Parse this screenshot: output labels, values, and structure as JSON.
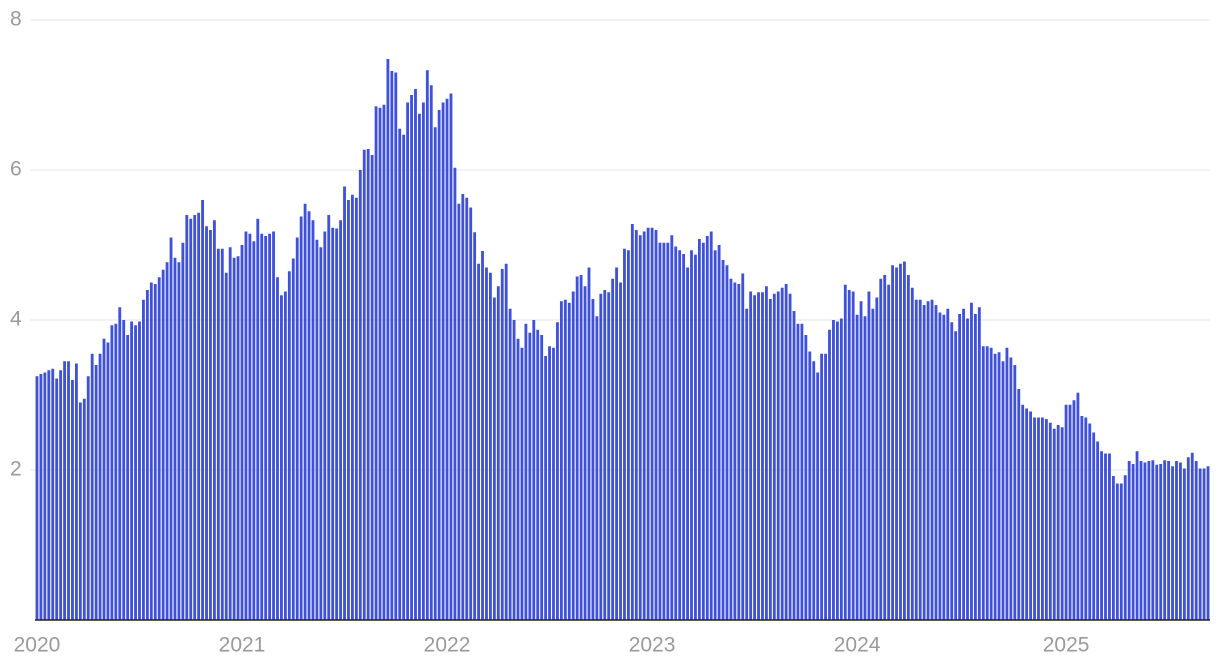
{
  "chart_data": {
    "type": "bar",
    "categories": [
      "2020",
      null,
      null,
      null,
      null,
      null,
      null,
      null,
      null,
      null,
      null,
      null,
      null,
      null,
      null,
      null,
      null,
      null,
      null,
      null,
      null,
      null,
      null,
      null,
      null,
      null,
      null,
      null,
      null,
      null,
      null,
      null,
      null,
      null,
      null,
      null,
      null,
      null,
      null,
      null,
      null,
      null,
      null,
      null,
      null,
      null,
      null,
      null,
      null,
      null,
      null,
      null,
      "2021",
      null,
      null,
      null,
      null,
      null,
      null,
      null,
      null,
      null,
      null,
      null,
      null,
      null,
      null,
      null,
      null,
      null,
      null,
      null,
      null,
      null,
      null,
      null,
      null,
      null,
      null,
      null,
      null,
      null,
      null,
      null,
      null,
      null,
      null,
      null,
      null,
      null,
      null,
      null,
      null,
      null,
      null,
      null,
      null,
      null,
      null,
      null,
      null,
      null,
      null,
      null,
      "2022",
      null,
      null,
      null,
      null,
      null,
      null,
      null,
      null,
      null,
      null,
      null,
      null,
      null,
      null,
      null,
      null,
      null,
      null,
      null,
      null,
      null,
      null,
      null,
      null,
      null,
      null,
      null,
      null,
      null,
      null,
      null,
      null,
      null,
      null,
      null,
      null,
      null,
      null,
      null,
      null,
      null,
      null,
      null,
      null,
      null,
      null,
      null,
      null,
      null,
      null,
      null,
      "2023",
      null,
      null,
      null,
      null,
      null,
      null,
      null,
      null,
      null,
      null,
      null,
      null,
      null,
      null,
      null,
      null,
      null,
      null,
      null,
      null,
      null,
      null,
      null,
      null,
      null,
      null,
      null,
      null,
      null,
      null,
      null,
      null,
      null,
      null,
      null,
      null,
      null,
      null,
      null,
      null,
      null,
      null,
      null,
      null,
      null,
      null,
      null,
      null,
      null,
      null,
      null,
      "2024",
      null,
      null,
      null,
      null,
      null,
      null,
      null,
      null,
      null,
      null,
      null,
      null,
      null,
      null,
      null,
      null,
      null,
      null,
      null,
      null,
      null,
      null,
      null,
      null,
      null,
      null,
      null,
      null,
      null,
      null,
      null,
      null,
      null,
      null,
      null,
      null,
      null,
      null,
      null,
      null,
      null,
      null,
      null,
      null,
      null,
      null,
      null,
      null,
      null,
      null,
      null,
      null,
      "2025",
      null,
      null,
      null,
      null,
      null,
      null,
      null,
      null,
      null,
      null,
      null,
      null,
      null,
      null,
      null,
      null,
      null,
      null,
      null,
      null,
      null,
      null,
      null,
      null,
      null,
      null,
      null,
      null,
      null,
      null,
      null,
      null,
      null,
      null,
      null,
      null
    ],
    "values": [
      3.25,
      3.28,
      3.3,
      3.33,
      3.35,
      3.22,
      3.33,
      3.45,
      3.45,
      3.2,
      3.42,
      2.9,
      2.95,
      3.25,
      3.55,
      3.4,
      3.55,
      3.75,
      3.7,
      3.93,
      3.95,
      4.17,
      4.0,
      3.8,
      3.98,
      3.93,
      3.98,
      4.27,
      4.4,
      4.5,
      4.48,
      4.57,
      4.67,
      4.77,
      5.1,
      4.83,
      4.77,
      5.03,
      5.4,
      5.35,
      5.4,
      5.43,
      5.6,
      5.25,
      5.2,
      5.33,
      4.95,
      4.95,
      4.63,
      4.97,
      4.83,
      4.85,
      5.0,
      5.18,
      5.15,
      5.05,
      5.35,
      5.15,
      5.12,
      5.15,
      5.18,
      4.57,
      4.33,
      4.38,
      4.65,
      4.82,
      5.1,
      5.38,
      5.55,
      5.45,
      5.33,
      5.07,
      4.97,
      5.18,
      5.4,
      5.23,
      5.22,
      5.33,
      5.78,
      5.6,
      5.67,
      5.63,
      6.0,
      6.27,
      6.28,
      6.2,
      6.85,
      6.83,
      6.87,
      7.48,
      7.32,
      7.3,
      6.55,
      6.47,
      6.9,
      7.0,
      7.08,
      6.75,
      6.9,
      7.33,
      7.13,
      6.57,
      6.8,
      6.9,
      6.95,
      7.02,
      6.03,
      5.55,
      5.68,
      5.63,
      5.5,
      5.17,
      4.75,
      4.92,
      4.7,
      4.63,
      4.3,
      4.45,
      4.68,
      4.75,
      4.15,
      4.0,
      3.75,
      3.63,
      3.95,
      3.83,
      4.0,
      3.87,
      3.8,
      3.52,
      3.65,
      3.63,
      3.97,
      4.25,
      4.27,
      4.23,
      4.38,
      4.58,
      4.6,
      4.45,
      4.7,
      4.28,
      4.05,
      4.35,
      4.4,
      4.37,
      4.55,
      4.7,
      4.5,
      4.95,
      4.93,
      5.28,
      5.2,
      5.13,
      5.18,
      5.23,
      5.23,
      5.2,
      5.03,
      5.03,
      5.03,
      5.13,
      4.98,
      4.93,
      4.88,
      4.7,
      4.93,
      4.87,
      5.08,
      5.03,
      5.12,
      5.18,
      4.93,
      5.0,
      4.8,
      4.73,
      4.55,
      4.5,
      4.48,
      4.62,
      4.15,
      4.38,
      4.33,
      4.37,
      4.37,
      4.45,
      4.28,
      4.35,
      4.38,
      4.43,
      4.48,
      4.35,
      4.12,
      3.95,
      3.95,
      3.8,
      3.58,
      3.45,
      3.3,
      3.55,
      3.55,
      3.87,
      4.0,
      3.98,
      4.02,
      4.47,
      4.4,
      4.38,
      4.07,
      4.25,
      4.05,
      4.38,
      4.15,
      4.3,
      4.55,
      4.6,
      4.47,
      4.73,
      4.7,
      4.75,
      4.78,
      4.6,
      4.43,
      4.27,
      4.27,
      4.2,
      4.25,
      4.27,
      4.2,
      4.1,
      4.07,
      4.15,
      3.97,
      3.85,
      4.08,
      4.15,
      4.02,
      4.23,
      4.08,
      4.17,
      3.65,
      3.65,
      3.63,
      3.55,
      3.57,
      3.45,
      3.63,
      3.5,
      3.4,
      3.08,
      2.87,
      2.82,
      2.78,
      2.7,
      2.7,
      2.7,
      2.68,
      2.63,
      2.55,
      2.6,
      2.57,
      2.87,
      2.87,
      2.93,
      3.03,
      2.72,
      2.7,
      2.62,
      2.5,
      2.38,
      2.25,
      2.22,
      2.22,
      1.92,
      1.82,
      1.82,
      1.93,
      2.12,
      2.08,
      2.25,
      2.12,
      2.1,
      2.12,
      2.13,
      2.07,
      2.08,
      2.13,
      2.12,
      2.05,
      2.12,
      2.1,
      2.02,
      2.17,
      2.23,
      2.12,
      2.02,
      2.02,
      2.05
    ],
    "color": "#3f51d9",
    "ylim": [
      0,
      8
    ],
    "yticks": [
      2,
      4,
      6,
      8
    ],
    "grid": true
  }
}
